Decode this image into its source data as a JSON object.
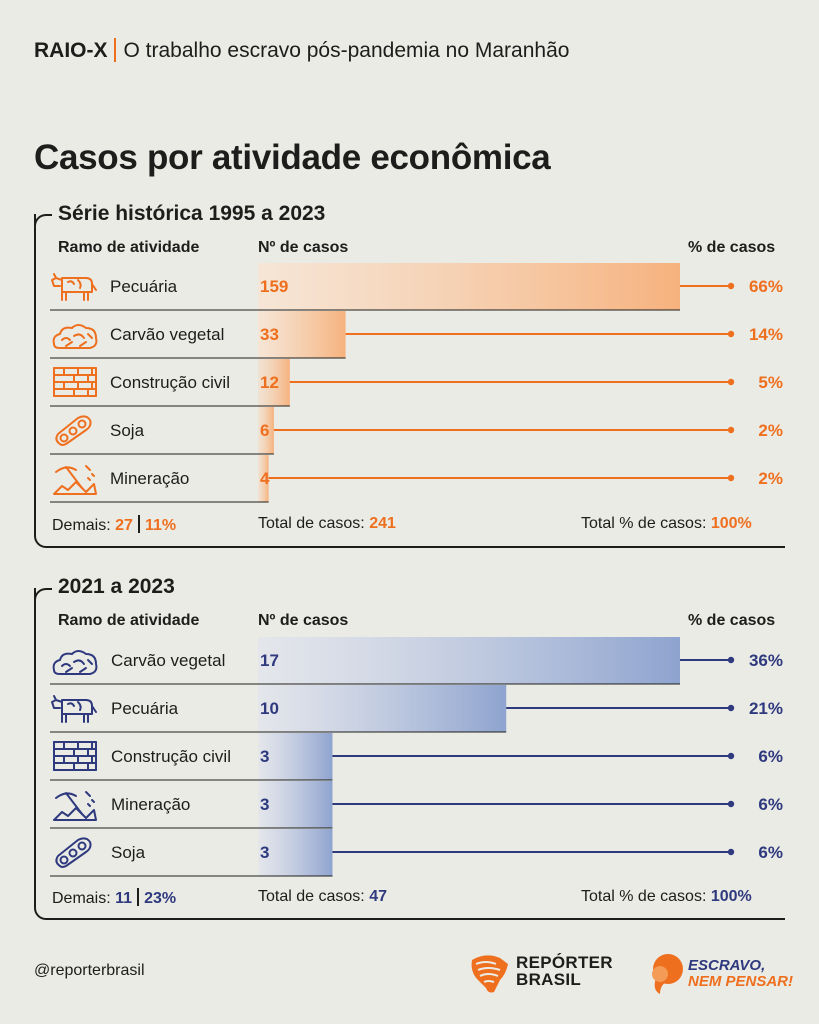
{
  "header": {
    "kicker_bold": "RAIO-X",
    "kicker_text": "O trabalho escravo pós-pandemia no Maranhão",
    "title": "Casos por atividade econômica"
  },
  "colors": {
    "orange": "#ee6f1e",
    "orange_light": "#f6b27e",
    "navy": "#2f3a7e",
    "blue_bar": "#8ea3cf",
    "text": "#1d1d1b",
    "background": "#ebebe6"
  },
  "chart_data": [
    {
      "type": "bar",
      "title": "Série histórica 1995 a 2023",
      "column_headers": [
        "Ramo de atividade",
        "Nº de casos",
        "% de casos"
      ],
      "categories": [
        "Pecuária",
        "Carvão vegetal",
        "Construção civil",
        "Soja",
        "Mineração"
      ],
      "icons": [
        "cow-icon",
        "charcoal-icon",
        "bricks-icon",
        "soy-icon",
        "mining-icon"
      ],
      "values": [
        159,
        33,
        12,
        6,
        4
      ],
      "value_labels": [
        "159",
        "33",
        "12",
        "6",
        "4"
      ],
      "percent_labels": [
        "66%",
        "14%",
        "5%",
        "2%",
        "2%"
      ],
      "xlim": [
        0,
        159
      ],
      "footer": {
        "others_label": "Demais:",
        "others_count": "27",
        "others_pct": "11%",
        "total_label": "Total de casos:",
        "total_value": "241",
        "total_pct_label": "Total % de casos:",
        "total_pct_value": "100%"
      }
    },
    {
      "type": "bar",
      "title": "2021 a 2023",
      "column_headers": [
        "Ramo de atividade",
        "Nº de casos",
        "% de casos"
      ],
      "categories": [
        "Carvão vegetal",
        "Pecuária",
        "Construção civil",
        "Mineração",
        "Soja"
      ],
      "icons": [
        "charcoal-icon",
        "cow-icon",
        "bricks-icon",
        "mining-icon",
        "soy-icon"
      ],
      "values": [
        17,
        10,
        3,
        3,
        3
      ],
      "value_labels": [
        "17",
        "10",
        "3",
        "3",
        "3"
      ],
      "percent_labels": [
        "36%",
        "21%",
        "6%",
        "6%",
        "6%"
      ],
      "xlim": [
        0,
        17
      ],
      "footer": {
        "others_label": "Demais:",
        "others_count": "11",
        "others_pct": "23%",
        "total_label": "Total de casos:",
        "total_value": "47",
        "total_pct_label": "Total % de casos:",
        "total_pct_value": "100%"
      }
    }
  ],
  "footer": {
    "handle": "@reporterbrasil",
    "brand1_line1": "REPÓRTER",
    "brand1_line2": "BRASIL",
    "brand2_line1": "ESCRAVO,",
    "brand2_line2": "NEM PENSAR!"
  }
}
